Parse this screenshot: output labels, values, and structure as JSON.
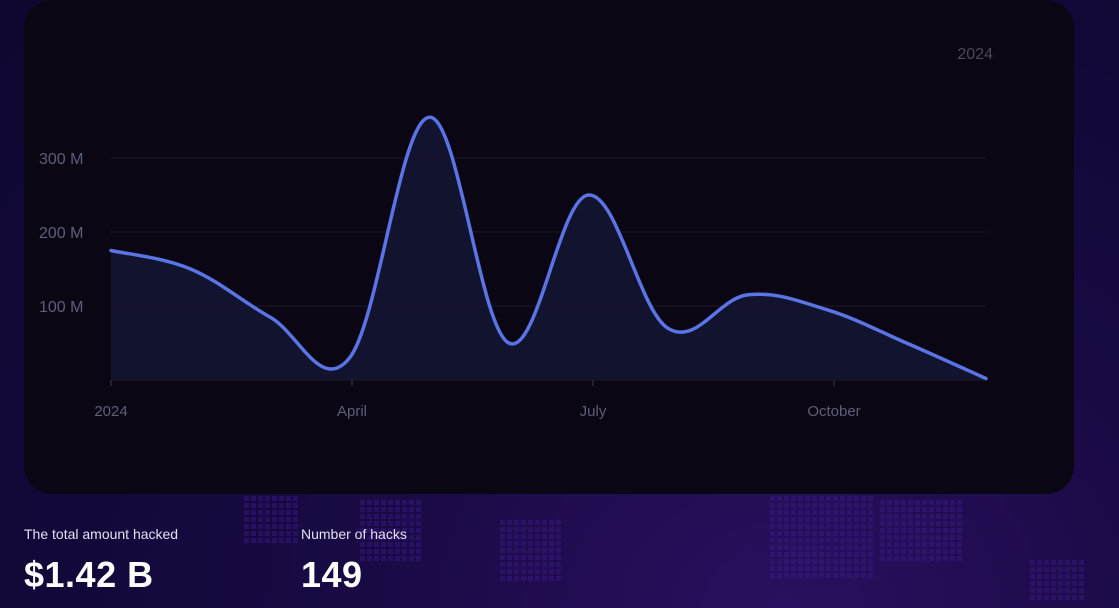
{
  "chart_data": {
    "type": "area",
    "period_label": "2024",
    "x_tick_labels": [
      "2024",
      "April",
      "July",
      "October"
    ],
    "y_tick_labels": [
      "100 M",
      "200 M",
      "300 M"
    ],
    "y_ticks": [
      100,
      200,
      300
    ],
    "ylim": [
      0,
      300
    ],
    "grid": true,
    "series": [
      {
        "values": [
          175,
          150,
          85,
          30,
          355,
          50,
          250,
          70,
          115,
          95,
          50,
          2
        ]
      }
    ],
    "colors": {
      "line": "#5a74e6",
      "fill": "#141633",
      "grid": "#1e1a2b",
      "tick": "#5c5f7a",
      "period": "#4a4a58"
    }
  },
  "stats": {
    "total": {
      "label": "The total amount hacked",
      "value": "$1.42 B"
    },
    "count": {
      "label": "Number of hacks",
      "value": "149"
    }
  }
}
